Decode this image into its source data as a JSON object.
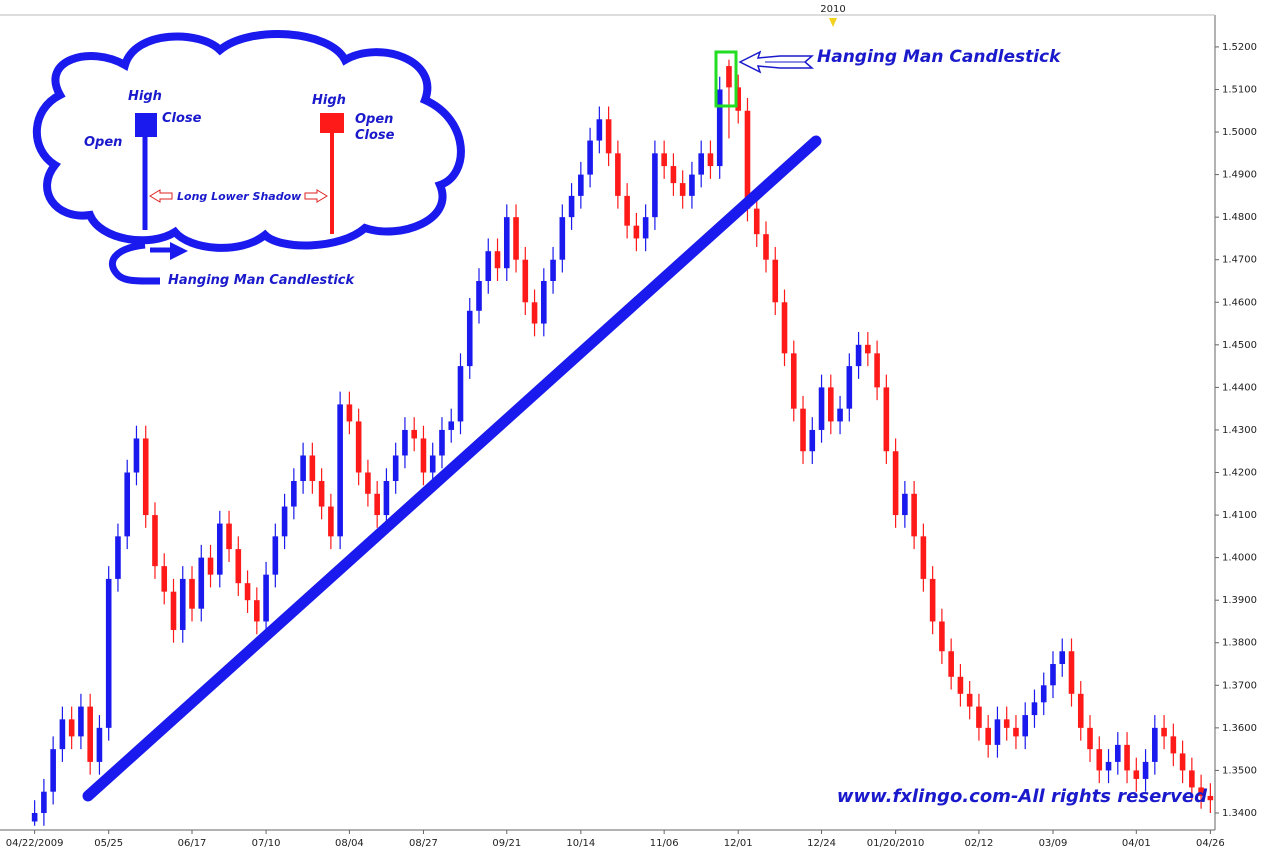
{
  "chart_data": {
    "type": "candlestick",
    "categories": [
      "04/22/2009",
      null,
      null,
      null,
      null,
      null,
      null,
      null,
      "05/25",
      null,
      null,
      null,
      null,
      null,
      null,
      null,
      null,
      "06/17",
      null,
      null,
      null,
      null,
      null,
      null,
      null,
      "07/10",
      null,
      null,
      null,
      null,
      null,
      null,
      null,
      null,
      "08/04",
      null,
      null,
      null,
      null,
      null,
      null,
      null,
      "08/27",
      null,
      null,
      null,
      null,
      null,
      null,
      null,
      null,
      "09/21",
      null,
      null,
      null,
      null,
      null,
      null,
      null,
      "10/14",
      null,
      null,
      null,
      null,
      null,
      null,
      null,
      null,
      "11/06",
      null,
      null,
      null,
      null,
      null,
      null,
      null,
      "12/01",
      null,
      null,
      null,
      null,
      null,
      null,
      null,
      null,
      "12/24",
      null,
      null,
      null,
      null,
      null,
      null,
      null,
      "01/20/2010",
      null,
      null,
      null,
      null,
      null,
      null,
      null,
      null,
      "02/12",
      null,
      null,
      null,
      null,
      null,
      null,
      null,
      "03/09",
      null,
      null,
      null,
      null,
      null,
      null,
      null,
      null,
      "04/01",
      null,
      null,
      null,
      null,
      null,
      null,
      null,
      "04/26"
    ],
    "open": [
      1.338,
      1.34,
      1.345,
      1.355,
      1.362,
      1.358,
      1.365,
      1.352,
      1.36,
      1.395,
      1.405,
      1.42,
      1.428,
      1.41,
      1.398,
      1.392,
      1.383,
      1.395,
      1.388,
      1.4,
      1.396,
      1.408,
      1.402,
      1.394,
      1.39,
      1.385,
      1.396,
      1.405,
      1.412,
      1.418,
      1.424,
      1.418,
      1.412,
      1.405,
      1.436,
      1.432,
      1.42,
      1.415,
      1.41,
      1.418,
      1.424,
      1.43,
      1.428,
      1.42,
      1.424,
      1.43,
      1.432,
      1.445,
      1.458,
      1.465,
      1.472,
      1.468,
      1.48,
      1.47,
      1.46,
      1.455,
      1.465,
      1.47,
      1.48,
      1.485,
      1.49,
      1.498,
      1.503,
      1.495,
      1.485,
      1.478,
      1.475,
      1.48,
      1.495,
      1.492,
      1.488,
      1.485,
      1.49,
      1.495,
      1.492,
      1.5155,
      1.5105,
      1.505,
      1.482,
      1.476,
      1.47,
      1.46,
      1.448,
      1.435,
      1.425,
      1.43,
      1.44,
      1.432,
      1.435,
      1.445,
      1.45,
      1.448,
      1.44,
      1.425,
      1.41,
      1.415,
      1.405,
      1.395,
      1.385,
      1.378,
      1.372,
      1.368,
      1.365,
      1.36,
      1.356,
      1.362,
      1.36,
      1.358,
      1.363,
      1.366,
      1.37,
      1.375,
      1.378,
      1.368,
      1.36,
      1.355,
      1.35,
      1.352,
      1.356,
      1.35,
      1.348,
      1.352,
      1.36,
      1.358,
      1.354,
      1.35,
      1.346,
      1.344
    ],
    "high": [
      1.343,
      1.348,
      1.358,
      1.365,
      1.365,
      1.368,
      1.368,
      1.363,
      1.398,
      1.408,
      1.423,
      1.431,
      1.431,
      1.413,
      1.401,
      1.395,
      1.398,
      1.398,
      1.403,
      1.403,
      1.411,
      1.411,
      1.405,
      1.397,
      1.393,
      1.399,
      1.408,
      1.415,
      1.421,
      1.427,
      1.427,
      1.421,
      1.415,
      1.439,
      1.439,
      1.435,
      1.423,
      1.418,
      1.421,
      1.427,
      1.433,
      1.433,
      1.431,
      1.427,
      1.433,
      1.435,
      1.448,
      1.461,
      1.468,
      1.475,
      1.475,
      1.483,
      1.483,
      1.473,
      1.463,
      1.468,
      1.473,
      1.483,
      1.488,
      1.493,
      1.501,
      1.506,
      1.506,
      1.498,
      1.488,
      1.481,
      1.483,
      1.498,
      1.498,
      1.495,
      1.491,
      1.493,
      1.498,
      1.498,
      1.513,
      1.517,
      1.5135,
      1.508,
      1.485,
      1.479,
      1.473,
      1.463,
      1.451,
      1.438,
      1.433,
      1.443,
      1.443,
      1.438,
      1.448,
      1.453,
      1.453,
      1.451,
      1.443,
      1.428,
      1.418,
      1.418,
      1.408,
      1.398,
      1.388,
      1.381,
      1.375,
      1.371,
      1.368,
      1.363,
      1.365,
      1.365,
      1.363,
      1.366,
      1.369,
      1.373,
      1.378,
      1.381,
      1.381,
      1.371,
      1.363,
      1.358,
      1.355,
      1.359,
      1.359,
      1.353,
      1.355,
      1.363,
      1.363,
      1.361,
      1.357,
      1.353,
      1.349,
      1.347
    ],
    "low": [
      1.337,
      1.337,
      1.342,
      1.352,
      1.355,
      1.355,
      1.349,
      1.349,
      1.357,
      1.392,
      1.402,
      1.417,
      1.407,
      1.395,
      1.389,
      1.38,
      1.38,
      1.385,
      1.385,
      1.393,
      1.393,
      1.399,
      1.391,
      1.387,
      1.382,
      1.382,
      1.393,
      1.402,
      1.409,
      1.415,
      1.415,
      1.409,
      1.402,
      1.402,
      1.429,
      1.417,
      1.412,
      1.407,
      1.407,
      1.415,
      1.421,
      1.425,
      1.417,
      1.417,
      1.421,
      1.427,
      1.429,
      1.442,
      1.455,
      1.462,
      1.465,
      1.465,
      1.467,
      1.457,
      1.452,
      1.452,
      1.462,
      1.467,
      1.477,
      1.482,
      1.487,
      1.495,
      1.492,
      1.482,
      1.475,
      1.472,
      1.472,
      1.477,
      1.489,
      1.485,
      1.482,
      1.482,
      1.487,
      1.489,
      1.489,
      1.4985,
      1.502,
      1.479,
      1.473,
      1.467,
      1.457,
      1.445,
      1.432,
      1.422,
      1.422,
      1.427,
      1.429,
      1.429,
      1.432,
      1.442,
      1.445,
      1.437,
      1.422,
      1.407,
      1.407,
      1.402,
      1.392,
      1.382,
      1.375,
      1.369,
      1.365,
      1.362,
      1.357,
      1.353,
      1.353,
      1.357,
      1.355,
      1.355,
      1.36,
      1.363,
      1.367,
      1.372,
      1.365,
      1.357,
      1.352,
      1.347,
      1.347,
      1.349,
      1.347,
      1.345,
      1.345,
      1.349,
      1.355,
      1.351,
      1.347,
      1.343,
      1.341,
      1.34
    ],
    "close": [
      1.34,
      1.345,
      1.355,
      1.362,
      1.358,
      1.365,
      1.352,
      1.36,
      1.395,
      1.405,
      1.42,
      1.428,
      1.41,
      1.398,
      1.392,
      1.383,
      1.395,
      1.388,
      1.4,
      1.396,
      1.408,
      1.402,
      1.394,
      1.39,
      1.385,
      1.396,
      1.405,
      1.412,
      1.418,
      1.424,
      1.418,
      1.412,
      1.405,
      1.436,
      1.432,
      1.42,
      1.415,
      1.41,
      1.418,
      1.424,
      1.43,
      1.428,
      1.42,
      1.424,
      1.43,
      1.432,
      1.445,
      1.458,
      1.465,
      1.472,
      1.468,
      1.48,
      1.47,
      1.46,
      1.455,
      1.465,
      1.47,
      1.48,
      1.485,
      1.49,
      1.498,
      1.503,
      1.495,
      1.485,
      1.478,
      1.475,
      1.48,
      1.495,
      1.492,
      1.488,
      1.485,
      1.49,
      1.495,
      1.492,
      1.51,
      1.5105,
      1.505,
      1.482,
      1.476,
      1.47,
      1.46,
      1.448,
      1.435,
      1.425,
      1.43,
      1.44,
      1.432,
      1.435,
      1.445,
      1.45,
      1.448,
      1.44,
      1.425,
      1.41,
      1.415,
      1.405,
      1.395,
      1.385,
      1.378,
      1.372,
      1.368,
      1.365,
      1.36,
      1.356,
      1.362,
      1.36,
      1.358,
      1.363,
      1.366,
      1.37,
      1.375,
      1.378,
      1.368,
      1.36,
      1.355,
      1.35,
      1.352,
      1.356,
      1.35,
      1.348,
      1.352,
      1.36,
      1.358,
      1.354,
      1.35,
      1.346,
      1.344,
      1.343
    ],
    "up_color": "#1a1aee",
    "down_color": "#ff1a1a",
    "ylim": [
      1.336,
      1.5275
    ],
    "yticks": [
      {
        "value": 1.34,
        "label": "1.3400"
      },
      {
        "value": 1.35,
        "label": "1.3500"
      },
      {
        "value": 1.36,
        "label": "1.3600"
      },
      {
        "value": 1.37,
        "label": "1.3700"
      },
      {
        "value": 1.38,
        "label": "1.3800"
      },
      {
        "value": 1.39,
        "label": "1.3900"
      },
      {
        "value": 1.4,
        "label": "1.4000"
      },
      {
        "value": 1.41,
        "label": "1.4100"
      },
      {
        "value": 1.42,
        "label": "1.4200"
      },
      {
        "value": 1.43,
        "label": "1.4300"
      },
      {
        "value": 1.44,
        "label": "1.4400"
      },
      {
        "value": 1.45,
        "label": "1.4500"
      },
      {
        "value": 1.46,
        "label": "1.4600"
      },
      {
        "value": 1.47,
        "label": "1.4700"
      },
      {
        "value": 1.48,
        "label": "1.4800"
      },
      {
        "value": 1.49,
        "label": "1.4900"
      },
      {
        "value": 1.5,
        "label": "1.5000"
      },
      {
        "value": 1.51,
        "label": "1.5100"
      },
      {
        "value": 1.52,
        "label": "1.5200"
      }
    ],
    "annotations": {
      "year_marker": "2010",
      "callout": "Hanging Man Candlestick",
      "legend": {
        "high_1": "High",
        "close_1": "Close",
        "open_1": "Open",
        "high_2": "High",
        "open_2": "Open",
        "close_2": "Close",
        "shadow": "Long Lower Shadow",
        "caption": "Hanging Man Candlestick"
      },
      "watermark": "www.fxlingo.com-All rights reserved"
    }
  }
}
